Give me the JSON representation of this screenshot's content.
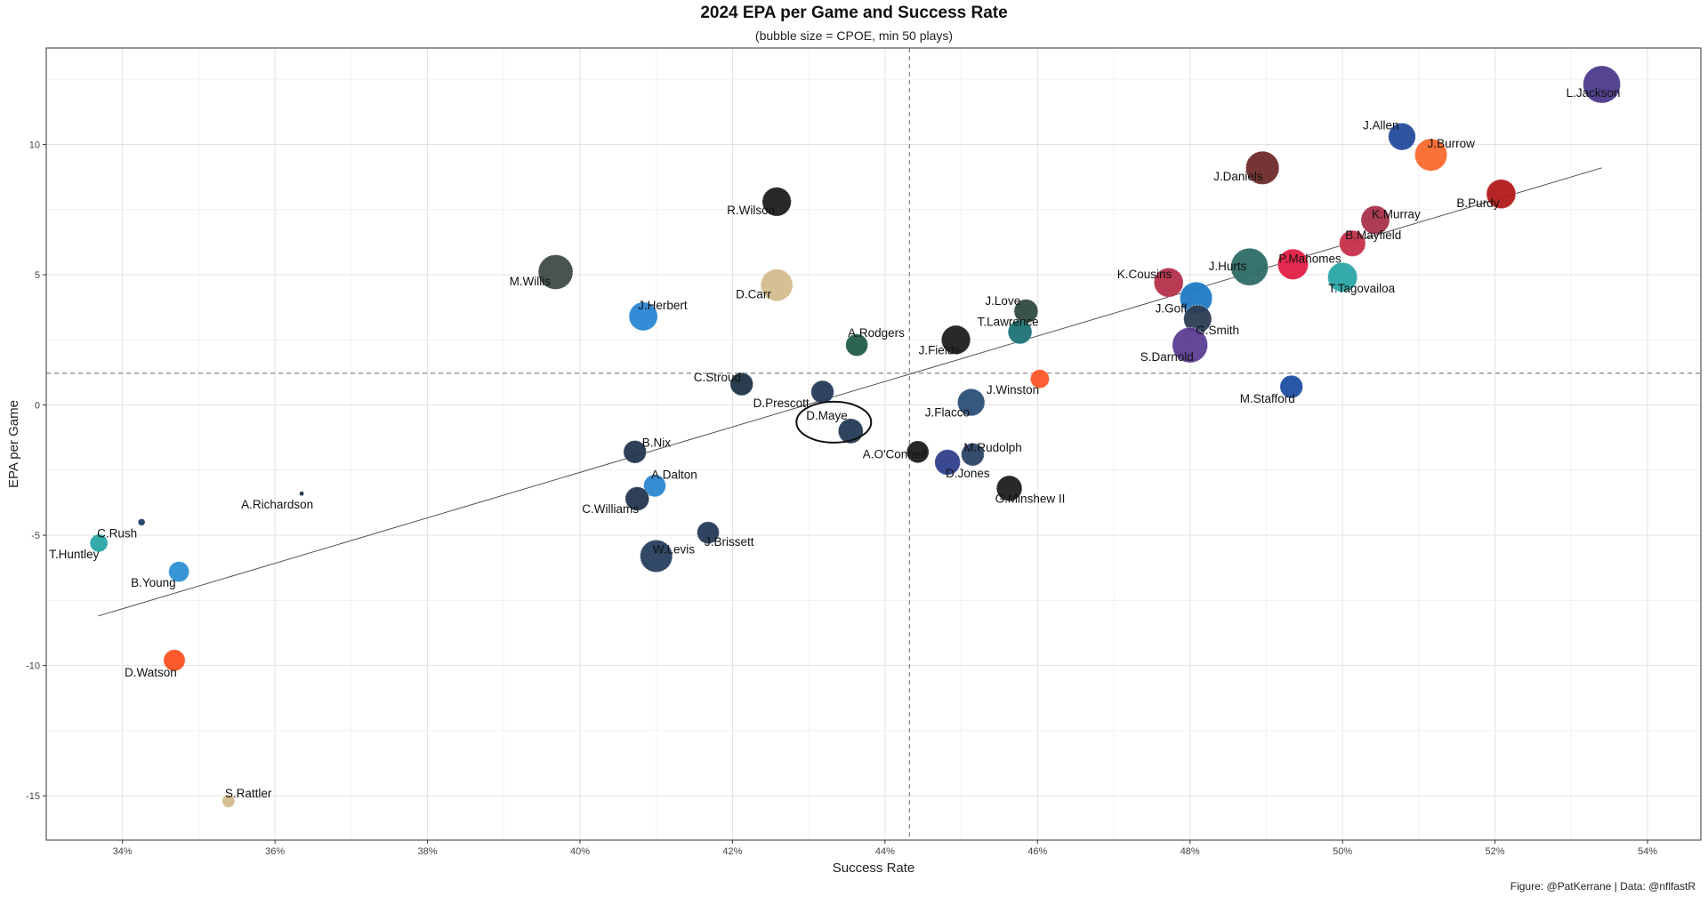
{
  "chart_data": {
    "type": "scatter",
    "title": "2024 EPA per Game and Success Rate",
    "subtitle": "(bubble size = CPOE, min 50 plays)",
    "xlabel": "Success Rate",
    "ylabel": "EPA per Game",
    "caption": "Figure: @PatKerrane | Data: @nflfastR",
    "xlim": [
      0.33,
      0.547
    ],
    "ylim": [
      -16.7,
      13.7
    ],
    "x_ticks": [
      0.34,
      0.36,
      0.38,
      0.4,
      0.42,
      0.44,
      0.46,
      0.48,
      0.5,
      0.52,
      0.54
    ],
    "x_tick_labels": [
      "34%",
      "36%",
      "38%",
      "40%",
      "42%",
      "44%",
      "46%",
      "48%",
      "50%",
      "52%",
      "54%"
    ],
    "y_ticks": [
      -15,
      -10,
      -5,
      0,
      5,
      10
    ],
    "y_tick_labels": [
      "-15",
      "-10",
      "-5",
      "0",
      "5",
      "10"
    ],
    "vline_x": 0.4432,
    "hline_y": 1.22,
    "trend_line": [
      [
        0.3368,
        -8.1
      ],
      [
        0.534,
        9.1
      ]
    ],
    "highlight": "D.Maye",
    "grid": true,
    "points": [
      {
        "name": "L.Jackson",
        "x": 0.534,
        "y": 12.3,
        "size": 1.0,
        "color": "#4b3a8c"
      },
      {
        "name": "J.Allen",
        "x": 0.5078,
        "y": 10.3,
        "size": 0.7,
        "color": "#234a9c"
      },
      {
        "name": "J.Burrow",
        "x": 0.5116,
        "y": 9.6,
        "size": 0.85,
        "color": "#fb6a2e"
      },
      {
        "name": "J.Daniels",
        "x": 0.4895,
        "y": 9.1,
        "size": 0.88,
        "color": "#6e2a2a"
      },
      {
        "name": "B.Purdy",
        "x": 0.5208,
        "y": 8.1,
        "size": 0.76,
        "color": "#b31a1a"
      },
      {
        "name": "K.Murray",
        "x": 0.5043,
        "y": 7.1,
        "size": 0.74,
        "color": "#a8324a"
      },
      {
        "name": "B.Mayfield",
        "x": 0.5013,
        "y": 6.2,
        "size": 0.67,
        "color": "#c7304a"
      },
      {
        "name": "R.Wilson",
        "x": 0.4258,
        "y": 7.8,
        "size": 0.75,
        "color": "#1e1e1e"
      },
      {
        "name": "M.Willis",
        "x": 0.3968,
        "y": 5.1,
        "size": 0.92,
        "color": "#3e4b46"
      },
      {
        "name": "D.Carr",
        "x": 0.4258,
        "y": 4.6,
        "size": 0.84,
        "color": "#d3bc8d"
      },
      {
        "name": "J.Herbert",
        "x": 0.4083,
        "y": 3.4,
        "size": 0.74,
        "color": "#2a86d4"
      },
      {
        "name": "J.Hurts",
        "x": 0.4878,
        "y": 5.3,
        "size": 1.0,
        "color": "#2e6b66"
      },
      {
        "name": "P.Mahomes",
        "x": 0.4935,
        "y": 5.4,
        "size": 0.8,
        "color": "#e31e45"
      },
      {
        "name": "K.Cousins",
        "x": 0.4772,
        "y": 4.7,
        "size": 0.76,
        "color": "#b5304a"
      },
      {
        "name": "T.Tagovailoa",
        "x": 0.5,
        "y": 4.9,
        "size": 0.77,
        "color": "#2aa5a5"
      },
      {
        "name": "J.Goff",
        "x": 0.4808,
        "y": 4.1,
        "size": 0.85,
        "color": "#1f7ac4"
      },
      {
        "name": "G.Smith",
        "x": 0.481,
        "y": 3.3,
        "size": 0.72,
        "color": "#2b3c52"
      },
      {
        "name": "S.Darnold",
        "x": 0.48,
        "y": 2.3,
        "size": 0.94,
        "color": "#5b3d92"
      },
      {
        "name": "J.Love",
        "x": 0.4585,
        "y": 3.6,
        "size": 0.6,
        "color": "#2f4a3e"
      },
      {
        "name": "T.Lawrence",
        "x": 0.4577,
        "y": 2.8,
        "size": 0.6,
        "color": "#1c7375"
      },
      {
        "name": "J.Fields",
        "x": 0.4493,
        "y": 2.5,
        "size": 0.75,
        "color": "#1e1e1e"
      },
      {
        "name": "A.Rodgers",
        "x": 0.4363,
        "y": 2.3,
        "size": 0.55,
        "color": "#215c4a"
      },
      {
        "name": "C.Stroud",
        "x": 0.4212,
        "y": 0.8,
        "size": 0.57,
        "color": "#1f3146"
      },
      {
        "name": "D.Prescott",
        "x": 0.4318,
        "y": 0.5,
        "size": 0.57,
        "color": "#243a55"
      },
      {
        "name": "J.Winston",
        "x": 0.4603,
        "y": 1.0,
        "size": 0.45,
        "color": "#fb5527"
      },
      {
        "name": "M.Stafford",
        "x": 0.4933,
        "y": 0.7,
        "size": 0.57,
        "color": "#1f4fa3"
      },
      {
        "name": "J.Flacco",
        "x": 0.4513,
        "y": 0.1,
        "size": 0.7,
        "color": "#2a4f78"
      },
      {
        "name": "D.Maye",
        "x": 0.4355,
        "y": -1.0,
        "size": 0.63,
        "color": "#243a55"
      },
      {
        "name": "A.O'Connell",
        "x": 0.4443,
        "y": -1.8,
        "size": 0.55,
        "color": "#1e1e1e"
      },
      {
        "name": "M.Rudolph",
        "x": 0.4515,
        "y": -1.9,
        "size": 0.57,
        "color": "#2b4266"
      },
      {
        "name": "D.Jones",
        "x": 0.4482,
        "y": -2.2,
        "size": 0.65,
        "color": "#2f3f8a"
      },
      {
        "name": "G.Minshew II",
        "x": 0.4563,
        "y": -3.2,
        "size": 0.65,
        "color": "#1e1e1e"
      },
      {
        "name": "B.Nix",
        "x": 0.4072,
        "y": -1.8,
        "size": 0.57,
        "color": "#22364f"
      },
      {
        "name": "A.Dalton",
        "x": 0.4098,
        "y": -3.1,
        "size": 0.55,
        "color": "#2b87d1"
      },
      {
        "name": "C.Williams",
        "x": 0.4075,
        "y": -3.6,
        "size": 0.6,
        "color": "#22364f"
      },
      {
        "name": "J.Brissett",
        "x": 0.4168,
        "y": -4.9,
        "size": 0.55,
        "color": "#243a55"
      },
      {
        "name": "W.Levis",
        "x": 0.41,
        "y": -5.8,
        "size": 0.85,
        "color": "#263e5e"
      },
      {
        "name": "A.Richardson",
        "x": 0.3635,
        "y": -3.4,
        "size": 0.03,
        "color": "#1f2d44"
      },
      {
        "name": "C.Rush",
        "x": 0.3425,
        "y": -4.5,
        "size": 0.1,
        "color": "#1f3b66"
      },
      {
        "name": "T.Huntley",
        "x": 0.3369,
        "y": -5.3,
        "size": 0.42,
        "color": "#2aa5a5"
      },
      {
        "name": "B.Young",
        "x": 0.3474,
        "y": -6.4,
        "size": 0.5,
        "color": "#2d8fd4"
      },
      {
        "name": "D.Watson",
        "x": 0.3468,
        "y": -9.8,
        "size": 0.53,
        "color": "#fb4f20"
      },
      {
        "name": "S.Rattler",
        "x": 0.3539,
        "y": -15.2,
        "size": 0.27,
        "color": "#d3bc8d"
      }
    ]
  }
}
